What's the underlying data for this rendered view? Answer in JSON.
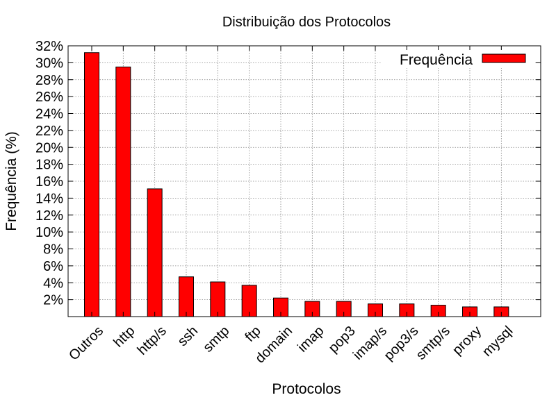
{
  "chart_data": {
    "type": "bar",
    "title": "Distribuição dos Protocolos",
    "xlabel": "Protocolos",
    "ylabel": "Frequência (%)",
    "categories": [
      "Outros",
      "http",
      "http/s",
      "ssh",
      "smtp",
      "ftp",
      "domain",
      "imap",
      "pop3",
      "imap/s",
      "pop3/s",
      "smtp/s",
      "proxy",
      "mysql"
    ],
    "series": [
      {
        "name": "Frequência",
        "color": "#ff0000",
        "values": [
          31.2,
          29.5,
          15.1,
          4.7,
          4.1,
          3.7,
          2.2,
          1.8,
          1.8,
          1.5,
          1.5,
          1.35,
          1.15,
          1.15
        ]
      }
    ],
    "ylim": [
      0,
      32
    ],
    "yticks": [
      "2%",
      "4%",
      "6%",
      "8%",
      "10%",
      "12%",
      "14%",
      "16%",
      "18%",
      "20%",
      "22%",
      "24%",
      "26%",
      "28%",
      "30%",
      "32%"
    ],
    "grid": true,
    "legend_position": "top-right"
  }
}
